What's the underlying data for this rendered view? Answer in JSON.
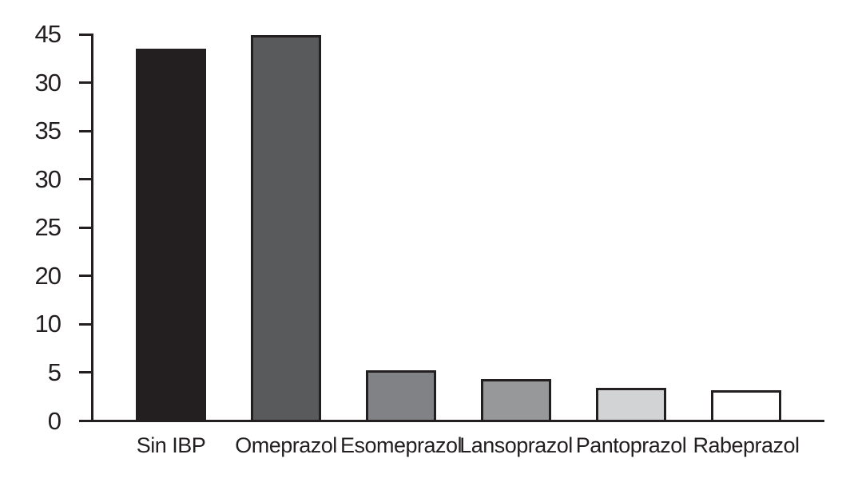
{
  "chart_data": {
    "type": "bar",
    "title": "",
    "xlabel": "",
    "ylabel": "",
    "categories": [
      "Sin IBP",
      "Omeprazol",
      "Esomeprazol",
      "Lansoprazol",
      "Pantoprazol",
      "Rabeprazol"
    ],
    "values": [
      43.5,
      45,
      6,
      5,
      4,
      3.7
    ],
    "ylim": [
      0,
      45
    ],
    "ytick_labels_top_to_bottom": [
      "45",
      "30",
      "35",
      "30",
      "25",
      "20",
      "10",
      "5",
      "0"
    ],
    "grid": false,
    "legend": false,
    "colors": {
      "bar_fills": [
        "#231f20",
        "#595a5c",
        "#808285",
        "#96989a",
        "#d2d3d4",
        "#ffffff"
      ],
      "bar_border": "#231f20",
      "axis": "#231f20",
      "text": "#231f20",
      "background": "#ffffff"
    }
  }
}
